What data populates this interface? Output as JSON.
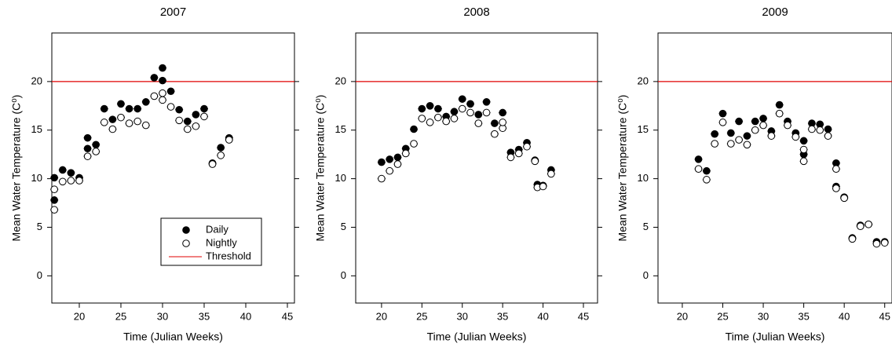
{
  "chart_data": [
    {
      "type": "scatter",
      "title": "2007",
      "xlabel": "Time (Julian Weeks)",
      "ylabel": "Mean Water Temperature (C⁰)",
      "xlim": [
        16.7,
        45.85
      ],
      "ylim": [
        -2.8,
        25
      ],
      "xticks": [
        20,
        25,
        30,
        35,
        40,
        45
      ],
      "yticks": [
        0,
        5,
        10,
        15,
        20
      ],
      "threshold": {
        "name": "Threshold",
        "value": 20,
        "color": "#e00000"
      },
      "legend": "lower right",
      "series": [
        {
          "name": "Daily",
          "color": "#000000",
          "marker": "filled",
          "x": [
            17,
            17,
            18,
            19,
            20,
            21,
            21,
            22,
            23,
            24,
            25,
            26,
            27,
            28,
            29,
            30,
            30,
            31,
            32,
            33,
            34,
            35,
            36,
            37,
            38
          ],
          "values": [
            10.1,
            7.8,
            10.9,
            10.6,
            10.1,
            14.2,
            13.1,
            13.5,
            17.2,
            16.1,
            17.7,
            17.2,
            17.2,
            17.9,
            20.4,
            21.4,
            20.1,
            19.0,
            17.1,
            15.9,
            16.6,
            17.2,
            11.6,
            13.2,
            14.2
          ]
        },
        {
          "name": "Nightly",
          "color": "#000000",
          "marker": "open",
          "x": [
            17,
            17,
            18,
            19,
            20,
            21,
            22,
            23,
            24,
            25,
            26,
            27,
            28,
            29,
            30,
            30,
            31,
            32,
            33,
            34,
            35,
            36,
            37,
            38
          ],
          "values": [
            8.9,
            6.8,
            9.7,
            9.8,
            9.8,
            12.3,
            12.8,
            15.8,
            15.1,
            16.3,
            15.7,
            15.9,
            15.5,
            18.5,
            18.8,
            18.1,
            17.4,
            16.0,
            15.1,
            15.4,
            16.4,
            11.5,
            12.4,
            14.0
          ]
        }
      ]
    },
    {
      "type": "scatter",
      "title": "2008",
      "xlabel": "Time (Julian Weeks)",
      "ylabel": "Mean Water Temperature (C⁰)",
      "xlim": [
        16.8,
        46.75
      ],
      "ylim": [
        -2.8,
        25
      ],
      "xticks": [
        20,
        25,
        30,
        35,
        40,
        45
      ],
      "yticks": [
        0,
        5,
        10,
        15,
        20
      ],
      "threshold": {
        "value": 20,
        "color": "#e00000"
      },
      "series": [
        {
          "color": "#000000",
          "marker": "filled",
          "x": [
            20,
            21,
            22,
            23,
            24,
            25,
            26,
            27,
            28,
            29,
            30,
            31,
            32,
            33,
            34,
            35,
            36,
            37,
            38,
            39,
            39.3,
            40,
            41
          ],
          "values": [
            11.7,
            12.0,
            12.2,
            13.1,
            15.1,
            17.2,
            17.5,
            17.2,
            16.4,
            16.9,
            18.2,
            17.7,
            16.6,
            17.9,
            15.7,
            16.8,
            12.7,
            13.0,
            13.7,
            11.9,
            9.4,
            9.3,
            10.9
          ]
        },
        {
          "color": "#000000",
          "marker": "open",
          "x": [
            20,
            21,
            22,
            23,
            24,
            25,
            26,
            27,
            28,
            29,
            30,
            31,
            32,
            33,
            34,
            35,
            35,
            36,
            37,
            38,
            39,
            39.3,
            40,
            41
          ],
          "values": [
            10.0,
            10.8,
            11.5,
            12.6,
            13.6,
            16.2,
            15.8,
            16.3,
            15.9,
            16.2,
            17.2,
            16.8,
            15.7,
            16.8,
            14.6,
            15.2,
            15.8,
            12.2,
            12.6,
            13.3,
            11.8,
            9.1,
            9.2,
            10.5
          ]
        }
      ]
    },
    {
      "type": "scatter",
      "title": "2009",
      "xlabel": "Time (Julian Weeks)",
      "ylabel": "Mean Water Temperature (C⁰)",
      "xlim": [
        17,
        45.9
      ],
      "ylim": [
        -2.8,
        25
      ],
      "xticks": [
        20,
        25,
        30,
        35,
        40,
        45
      ],
      "yticks": [
        0,
        5,
        10,
        15,
        20
      ],
      "threshold": {
        "value": 20,
        "color": "#e00000"
      },
      "series": [
        {
          "color": "#000000",
          "marker": "filled",
          "x": [
            22,
            23,
            24,
            25,
            26,
            27,
            28,
            29,
            30,
            31,
            32,
            33,
            34,
            35,
            35,
            36,
            37,
            38,
            39,
            39,
            40,
            41,
            42,
            43,
            44,
            45
          ],
          "values": [
            12.0,
            10.8,
            14.6,
            16.7,
            14.7,
            15.9,
            14.4,
            15.9,
            16.2,
            14.9,
            17.6,
            15.9,
            14.7,
            13.9,
            12.5,
            15.7,
            15.6,
            15.1,
            11.6,
            9.2,
            8.1,
            3.9,
            5.2,
            5.3,
            3.5,
            3.5
          ]
        },
        {
          "color": "#000000",
          "marker": "open",
          "x": [
            22,
            23,
            24,
            25,
            26,
            27,
            28,
            29,
            30,
            31,
            32,
            33,
            34,
            35,
            35,
            36,
            37,
            38,
            39,
            39,
            40,
            41,
            42,
            43,
            44,
            45
          ],
          "values": [
            11.0,
            9.9,
            13.6,
            15.8,
            13.6,
            14.0,
            13.5,
            15.0,
            15.5,
            14.4,
            16.7,
            15.5,
            14.3,
            13.0,
            11.8,
            15.1,
            15.0,
            14.4,
            11.0,
            9.0,
            8.0,
            3.8,
            5.1,
            5.3,
            3.3,
            3.4
          ]
        }
      ]
    }
  ]
}
